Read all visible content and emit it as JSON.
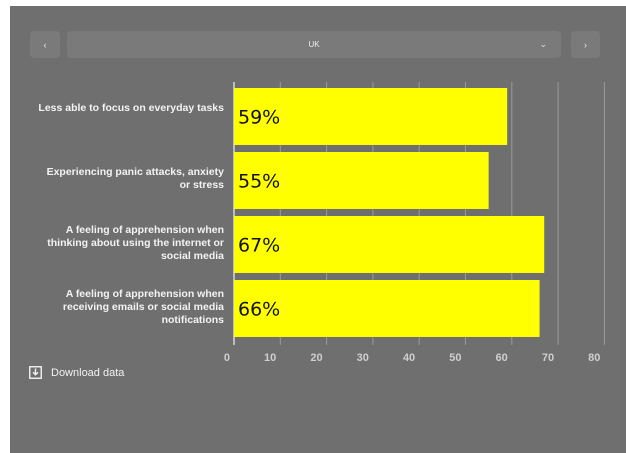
{
  "controls": {
    "prev_label": "‹",
    "next_label": "›",
    "selected_country": "UK",
    "chevron": "⌄"
  },
  "download": {
    "label": "Download data",
    "icon": "download-icon"
  },
  "colors": {
    "bar": "#ffff00",
    "background": "#6f6f6f",
    "grid": "#9a9a9a",
    "text": "#f3f3f3"
  },
  "chart_data": {
    "type": "bar",
    "orientation": "horizontal",
    "categories": [
      "Less able to focus on everyday tasks",
      "Experiencing panic attacks, anxiety or stress",
      "A feeling of apprehension when thinking about using the internet or social media",
      "A feeling of apprehension when receiving emails or social media notifications"
    ],
    "values": [
      59,
      55,
      67,
      66
    ],
    "data_labels": [
      "59%",
      "55%",
      "67%",
      "66%"
    ],
    "xlim": [
      0,
      80
    ],
    "ticks": [
      0,
      10,
      20,
      30,
      40,
      50,
      60,
      70,
      80
    ],
    "tick_labels": [
      "0",
      "10",
      "20",
      "30",
      "40",
      "50",
      "60",
      "70",
      "80"
    ],
    "grid": true
  }
}
